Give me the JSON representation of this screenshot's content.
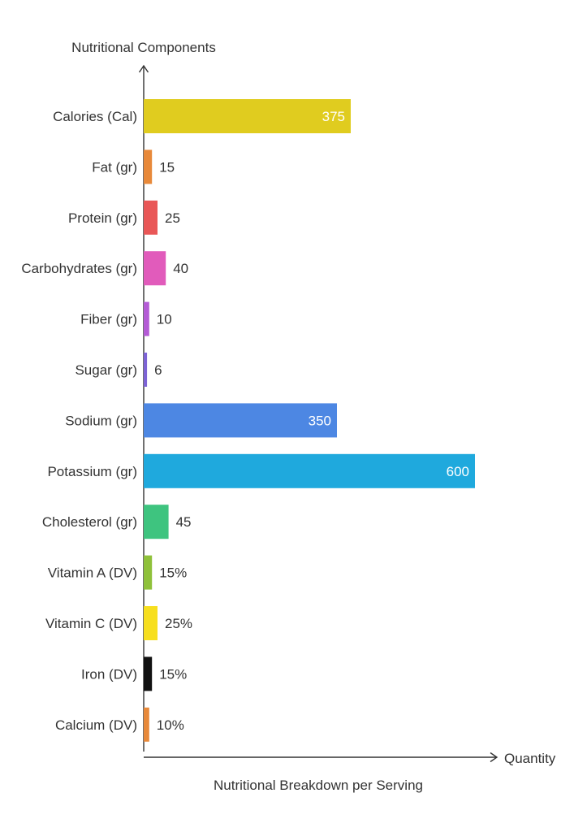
{
  "chart_data": {
    "type": "bar",
    "orientation": "horizontal",
    "title": "",
    "y_axis_title": "Nutritional Components",
    "x_axis_title": "Quantity",
    "caption": "Nutritional Breakdown per Serving",
    "grid": false,
    "legend": "none",
    "xlim": [
      0,
      800
    ],
    "categories": [
      "Calories (Cal)",
      "Fat (gr)",
      "Protein (gr)",
      "Carbohydrates (gr)",
      "Fiber (gr)",
      "Sugar (gr)",
      "Sodium (gr)",
      "Potassium (gr)",
      "Cholesterol (gr)",
      "Vitamin A (DV)",
      "Vitamin C (DV)",
      "Iron (DV)",
      "Calcium (DV)"
    ],
    "values": [
      375,
      15,
      25,
      40,
      10,
      6,
      350,
      600,
      45,
      15,
      25,
      15,
      10
    ],
    "value_labels": [
      "375",
      "15",
      "25",
      "40",
      "10",
      "6",
      "350",
      "600",
      "45",
      "15%",
      "25%",
      "15%",
      "10%"
    ],
    "colors": [
      "#e0cc1f",
      "#e8893a",
      "#e95757",
      "#e15bbb",
      "#b45bd6",
      "#7d63d6",
      "#4d87e3",
      "#1fa9dd",
      "#3ec47f",
      "#8fc13a",
      "#f7df1e",
      "#111111",
      "#e8893a"
    ]
  }
}
